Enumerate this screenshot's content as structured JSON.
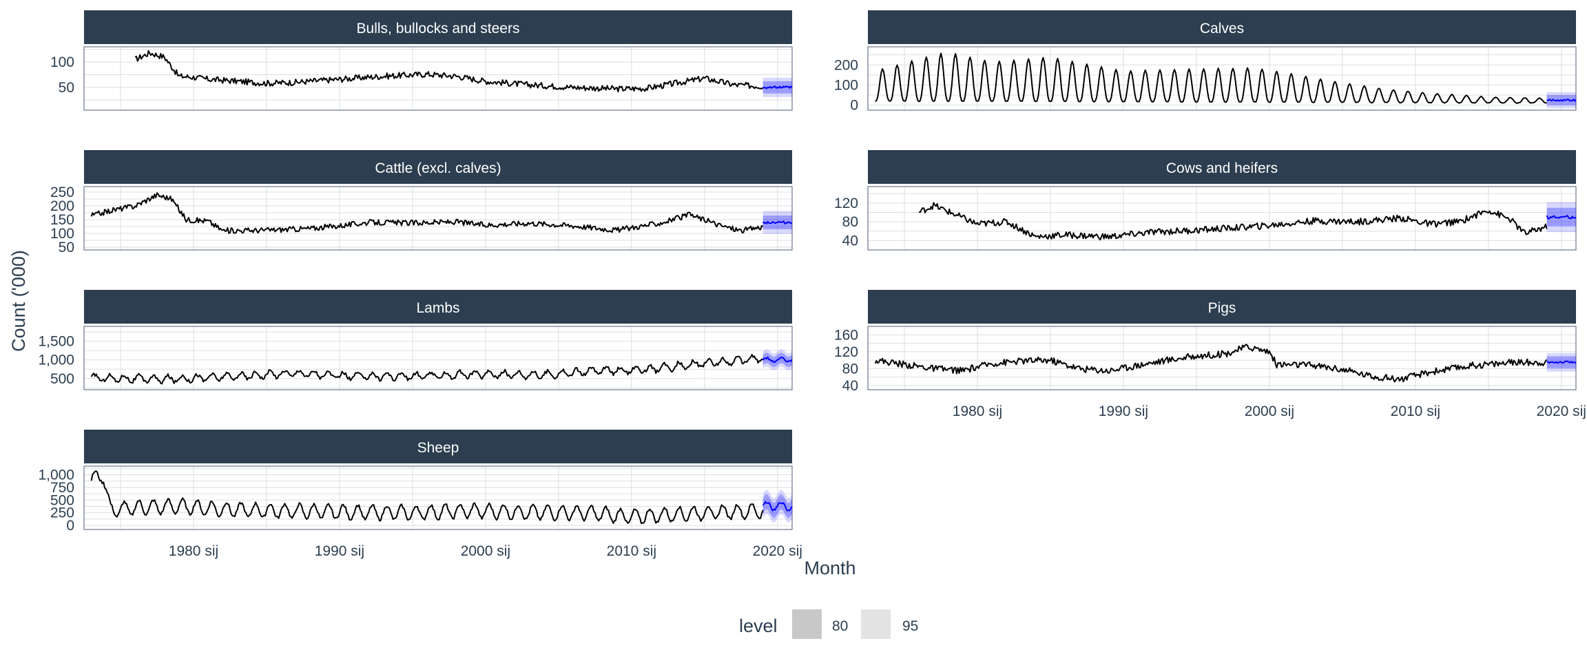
{
  "chart_data": {
    "type": "line",
    "xlabel": "Month",
    "ylabel": "Count ('000)",
    "x_range": [
      1972.5,
      2021.0
    ],
    "x_ticks": [
      1980,
      1990,
      2000,
      2010,
      2020
    ],
    "x_tick_labels": [
      "1980 sij",
      "1990 sij",
      "2000 sij",
      "2010 sij",
      "2020 sij"
    ],
    "forecast_start": 2019.0,
    "forecast_end": 2021.0,
    "series_color": "#000000",
    "forecast_color": "#0000ff",
    "interval_color": "#0000ff",
    "strip_color": "#2c3e50",
    "grid": true,
    "legend": {
      "title": "level",
      "position": "bottom",
      "items": [
        {
          "label": "80",
          "fill": "#c8c8c8"
        },
        {
          "label": "95",
          "fill": "#e3e3e3"
        }
      ]
    },
    "panels": [
      {
        "title": "Bulls, bullocks and steers",
        "ylim": [
          5,
          130
        ],
        "yticks": [
          50,
          100
        ],
        "ytick_labels": [
          "50",
          "100"
        ],
        "history": [
          [
            1976.0,
            105
          ],
          [
            1977.0,
            118
          ],
          [
            1978.0,
            110
          ],
          [
            1979.0,
            72
          ],
          [
            1980.0,
            70
          ],
          [
            1981.0,
            66
          ],
          [
            1983.0,
            62
          ],
          [
            1985.0,
            58
          ],
          [
            1987.0,
            60
          ],
          [
            1990.0,
            66
          ],
          [
            1993.0,
            72
          ],
          [
            1996.0,
            76
          ],
          [
            1998.0,
            72
          ],
          [
            2000.0,
            62
          ],
          [
            2003.0,
            55
          ],
          [
            2006.0,
            50
          ],
          [
            2009.0,
            47
          ],
          [
            2011.0,
            48
          ],
          [
            2013.0,
            58
          ],
          [
            2015.0,
            68
          ],
          [
            2017.0,
            55
          ],
          [
            2019.0,
            52
          ]
        ],
        "noise": 6,
        "seasonal_amp": 0,
        "forecast": 50,
        "pi80": 12,
        "pi95": 19
      },
      {
        "title": "Calves",
        "ylim": [
          -25,
          290
        ],
        "yticks": [
          0,
          100,
          200
        ],
        "ytick_labels": [
          "0",
          "100",
          "200"
        ],
        "history": [
          [
            1973.0,
            20
          ],
          [
            2021.0,
            10
          ]
        ],
        "noise": 3,
        "seasonal_amp": 0,
        "seasonal_peaks": [
          [
            1973.0,
            170
          ],
          [
            1976.0,
            230
          ],
          [
            1978.0,
            265
          ],
          [
            1981.0,
            215
          ],
          [
            1985.0,
            240
          ],
          [
            1990.0,
            170
          ],
          [
            1995.0,
            180
          ],
          [
            1999.0,
            185
          ],
          [
            2002.0,
            150
          ],
          [
            2005.0,
            110
          ],
          [
            2008.0,
            80
          ],
          [
            2011.0,
            60
          ],
          [
            2015.0,
            40
          ],
          [
            2019.0,
            35
          ]
        ],
        "forecast": 25,
        "pi80": 25,
        "pi95": 40
      },
      {
        "title": "Cattle (excl. calves)",
        "ylim": [
          40,
          270
        ],
        "yticks": [
          50,
          100,
          150,
          200,
          250
        ],
        "ytick_labels": [
          "50",
          "100",
          "150",
          "200",
          "250"
        ],
        "history": [
          [
            1973.0,
            165
          ],
          [
            1974.5,
            185
          ],
          [
            1976.0,
            200
          ],
          [
            1977.5,
            240
          ],
          [
            1978.5,
            225
          ],
          [
            1979.5,
            150
          ],
          [
            1981.0,
            145
          ],
          [
            1982.0,
            110
          ],
          [
            1985.0,
            112
          ],
          [
            1988.0,
            118
          ],
          [
            1990.0,
            128
          ],
          [
            1992.0,
            140
          ],
          [
            1995.0,
            138
          ],
          [
            1998.0,
            142
          ],
          [
            2000.0,
            130
          ],
          [
            2003.0,
            138
          ],
          [
            2006.0,
            128
          ],
          [
            2009.0,
            112
          ],
          [
            2012.0,
            138
          ],
          [
            2014.0,
            168
          ],
          [
            2016.0,
            130
          ],
          [
            2017.5,
            110
          ],
          [
            2019.0,
            125
          ]
        ],
        "noise": 10,
        "seasonal_amp": 0,
        "forecast": 140,
        "pi80": 25,
        "pi95": 42
      },
      {
        "title": "Cows and heifers",
        "ylim": [
          20,
          155
        ],
        "yticks": [
          40,
          80,
          120
        ],
        "ytick_labels": [
          "40",
          "80",
          "120"
        ],
        "history": [
          [
            1976.0,
            100
          ],
          [
            1977.0,
            115
          ],
          [
            1978.5,
            95
          ],
          [
            1980.0,
            75
          ],
          [
            1982.0,
            80
          ],
          [
            1984.0,
            48
          ],
          [
            1986.0,
            52
          ],
          [
            1989.0,
            48
          ],
          [
            1992.0,
            58
          ],
          [
            1995.0,
            62
          ],
          [
            1998.0,
            68
          ],
          [
            2000.0,
            72
          ],
          [
            2003.0,
            82
          ],
          [
            2006.0,
            80
          ],
          [
            2009.0,
            88
          ],
          [
            2011.0,
            75
          ],
          [
            2013.0,
            80
          ],
          [
            2015.0,
            105
          ],
          [
            2016.5,
            85
          ],
          [
            2017.5,
            55
          ],
          [
            2019.0,
            70
          ]
        ],
        "noise": 7,
        "seasonal_amp": 0,
        "forecast": 90,
        "pi80": 20,
        "pi95": 32
      },
      {
        "title": "Lambs",
        "ylim": [
          200,
          1900
        ],
        "yticks": [
          500,
          1000,
          1500
        ],
        "ytick_labels": [
          "500",
          "1,000",
          "1,500"
        ],
        "history": [
          [
            1973.0,
            520
          ],
          [
            1978.0,
            480
          ],
          [
            1983.0,
            560
          ],
          [
            1987.0,
            650
          ],
          [
            1990.0,
            570
          ],
          [
            1995.0,
            560
          ],
          [
            2000.0,
            620
          ],
          [
            2004.0,
            600
          ],
          [
            2008.0,
            720
          ],
          [
            2011.0,
            730
          ],
          [
            2014.0,
            880
          ],
          [
            2017.0,
            970
          ],
          [
            2019.0,
            1050
          ]
        ],
        "noise": 50,
        "seasonal_amp": 90,
        "forecast": 1000,
        "pi80": 140,
        "pi95": 230
      },
      {
        "title": "Pigs",
        "ylim": [
          30,
          180
        ],
        "yticks": [
          40,
          80,
          120,
          160
        ],
        "ytick_labels": [
          "40",
          "80",
          "120",
          "160"
        ],
        "history": [
          [
            1973.0,
            100
          ],
          [
            1975.0,
            90
          ],
          [
            1977.0,
            80
          ],
          [
            1979.0,
            75
          ],
          [
            1981.0,
            92
          ],
          [
            1983.0,
            98
          ],
          [
            1985.0,
            100
          ],
          [
            1987.0,
            80
          ],
          [
            1989.0,
            75
          ],
          [
            1991.0,
            88
          ],
          [
            1993.0,
            100
          ],
          [
            1995.0,
            110
          ],
          [
            1997.0,
            115
          ],
          [
            1998.5,
            132
          ],
          [
            2000.0,
            120
          ],
          [
            2000.5,
            90
          ],
          [
            2003.0,
            88
          ],
          [
            2005.0,
            78
          ],
          [
            2007.0,
            62
          ],
          [
            2009.0,
            55
          ],
          [
            2011.0,
            72
          ],
          [
            2014.0,
            88
          ],
          [
            2017.0,
            95
          ],
          [
            2019.0,
            95
          ]
        ],
        "noise": 8,
        "seasonal_amp": 0,
        "forecast": 95,
        "pi80": 14,
        "pi95": 22
      },
      {
        "title": "Sheep",
        "ylim": [
          -80,
          1170
        ],
        "yticks": [
          0,
          250,
          500,
          750,
          1000
        ],
        "ytick_labels": [
          "0",
          "250",
          "500",
          "750",
          "1,000"
        ],
        "history": [
          [
            1973.0,
            900
          ],
          [
            1973.8,
            1000
          ],
          [
            1974.3,
            300
          ],
          [
            1976.0,
            350
          ],
          [
            1979.0,
            380
          ],
          [
            1982.0,
            320
          ],
          [
            1985.0,
            290
          ],
          [
            1988.0,
            280
          ],
          [
            1991.0,
            260
          ],
          [
            1995.0,
            250
          ],
          [
            1999.0,
            290
          ],
          [
            2003.0,
            260
          ],
          [
            2007.0,
            250
          ],
          [
            2010.0,
            170
          ],
          [
            2013.0,
            220
          ],
          [
            2016.0,
            260
          ],
          [
            2019.0,
            290
          ]
        ],
        "noise": 30,
        "seasonal_amp": 140,
        "forecast": 380,
        "pi80": 150,
        "pi95": 240
      }
    ]
  }
}
